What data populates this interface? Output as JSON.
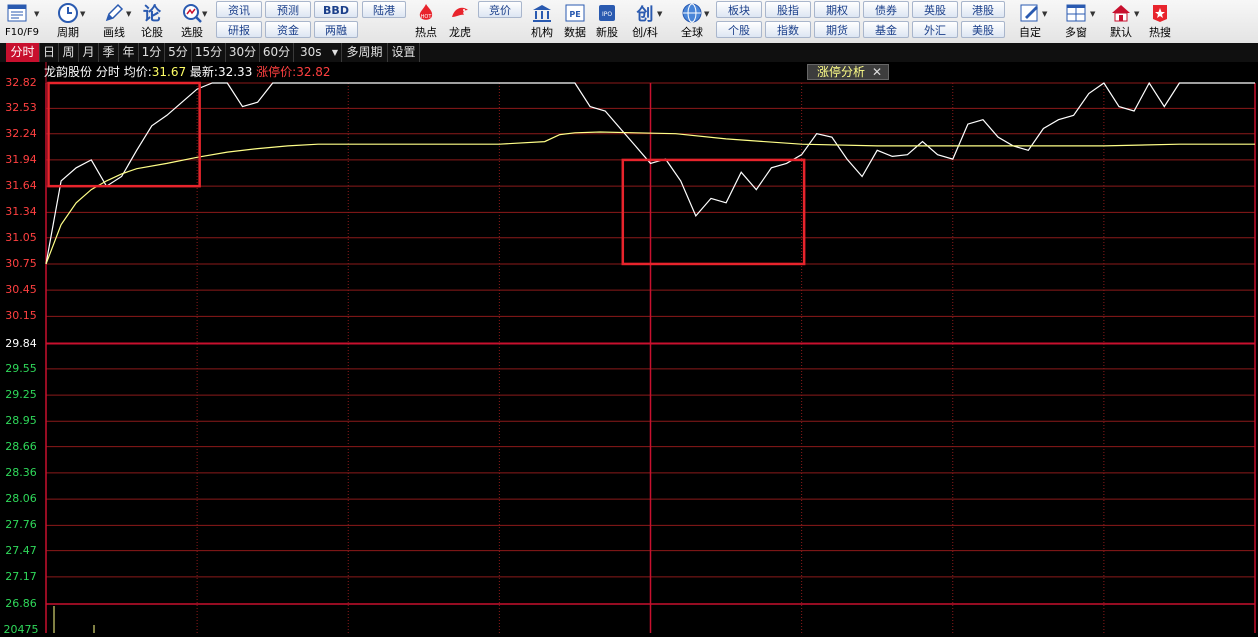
{
  "toolbar": {
    "f10_label": "F10/F9",
    "period_label": "周期",
    "draw_label": "画线",
    "comment_label": "论股",
    "pick_label": "选股",
    "news_label": "资讯",
    "forecast_label": "预测",
    "bbd_label": "BBD",
    "hk_connect_label": "陆港",
    "research_label": "研报",
    "fund_label": "资金",
    "margin_label": "两融",
    "hot_label": "热点",
    "hot_icon_text": "HOT",
    "dragon_label": "龙虎",
    "auction_label": "竞价",
    "institution_label": "机构",
    "data_label": "数据",
    "data_icon_text": "PE",
    "newstock_label": "新股",
    "newstock_icon_text": "IPO",
    "chuangke_label": "创/科",
    "chuangke_icon_text": "创",
    "global_label": "全球",
    "sector_label": "板块",
    "stock_label": "个股",
    "index_opt_label": "股指",
    "index_label": "指数",
    "options_label": "期权",
    "futures_label": "期货",
    "bond_label": "债券",
    "fundmkt_label": "基金",
    "uk_label": "英股",
    "forex_label": "外汇",
    "hk_label": "港股",
    "us_label": "美股",
    "custom_label": "自定",
    "multiwin_label": "多窗",
    "default_label": "默认",
    "hotsearch_label": "热搜"
  },
  "periods": [
    "分时",
    "日",
    "周",
    "月",
    "季",
    "年",
    "1分",
    "5分",
    "15分",
    "30分",
    "60分",
    "30s",
    "多周期",
    "设置"
  ],
  "info": {
    "name": "龙韵股份",
    "mode": "分时",
    "avg_label": "均价:",
    "avg_value": "31.67",
    "latest_label": "最新:",
    "latest_value": "32.33",
    "limit_label": "涨停价:",
    "limit_value": "32.82"
  },
  "analysis_tab": {
    "label": "涨停分析",
    "close": "✕"
  },
  "colors": {
    "up": "#ff4040",
    "down": "#2fd85a",
    "grid": "#8b1a1a",
    "price_line": "#ffffff",
    "avg_line": "#ffff88",
    "highlight_box": "#e8242c"
  },
  "chart_data": {
    "type": "line",
    "x_unit": "minute index from open (0-240)",
    "prev_close": 29.84,
    "ylim": [
      26.86,
      32.82
    ],
    "y_ticks": [
      "32.82",
      "32.53",
      "32.24",
      "31.94",
      "31.64",
      "31.34",
      "31.05",
      "30.75",
      "30.45",
      "30.15",
      "29.84",
      "29.55",
      "29.25",
      "28.95",
      "28.66",
      "28.36",
      "28.06",
      "27.76",
      "27.47",
      "27.17",
      "26.86"
    ],
    "volume_label": "20475",
    "series": [
      {
        "role": "price",
        "x": [
          0,
          3,
          6,
          9,
          12,
          15,
          18,
          21,
          24,
          27,
          30,
          33,
          36,
          39,
          42,
          45,
          48,
          51,
          54,
          57,
          60,
          63,
          66,
          69,
          72,
          75,
          78,
          81,
          84,
          87,
          90,
          93,
          96,
          99,
          102,
          105,
          108,
          111,
          114,
          117,
          120,
          123,
          126,
          129,
          132,
          135,
          138,
          141,
          144,
          147,
          150,
          153,
          156,
          159,
          162,
          165,
          168,
          171,
          174,
          177,
          180,
          183,
          186,
          189,
          192,
          195,
          198,
          201,
          204,
          207,
          210,
          213,
          216,
          219,
          222,
          225,
          228,
          231,
          234,
          237,
          240
        ],
        "y": [
          30.75,
          31.7,
          31.85,
          31.94,
          31.64,
          31.75,
          32.05,
          32.33,
          32.45,
          32.6,
          32.75,
          32.82,
          32.82,
          32.55,
          32.6,
          32.82,
          32.82,
          32.82,
          32.82,
          32.82,
          32.82,
          32.82,
          32.82,
          32.82,
          32.82,
          32.82,
          32.82,
          32.82,
          32.82,
          32.82,
          32.82,
          32.82,
          32.82,
          32.82,
          32.82,
          32.82,
          32.55,
          32.5,
          32.3,
          32.1,
          31.9,
          31.95,
          31.7,
          31.3,
          31.5,
          31.45,
          31.8,
          31.6,
          31.85,
          31.9,
          32.0,
          32.24,
          32.2,
          31.95,
          31.75,
          32.05,
          31.98,
          32.0,
          32.15,
          32.0,
          31.95,
          32.35,
          32.4,
          32.2,
          32.1,
          32.05,
          32.3,
          32.4,
          32.45,
          32.7,
          32.82,
          32.55,
          32.5,
          32.82,
          32.55,
          32.82,
          32.82,
          32.82,
          32.82,
          32.82,
          32.82
        ]
      },
      {
        "role": "average",
        "x": [
          0,
          3,
          6,
          9,
          12,
          15,
          18,
          24,
          30,
          36,
          42,
          48,
          54,
          60,
          75,
          90,
          99,
          102,
          105,
          110,
          117,
          125,
          135,
          150,
          165,
          180,
          195,
          210,
          225,
          240
        ],
        "y": [
          30.75,
          31.2,
          31.45,
          31.6,
          31.7,
          31.78,
          31.84,
          31.9,
          31.97,
          32.03,
          32.07,
          32.1,
          32.12,
          32.12,
          32.12,
          32.12,
          32.15,
          32.23,
          32.25,
          32.26,
          32.25,
          32.24,
          32.18,
          32.12,
          32.1,
          32.1,
          32.1,
          32.1,
          32.12,
          32.12
        ]
      }
    ],
    "highlight_boxes": [
      {
        "x0": 0.5,
        "x1": 30.5,
        "y_top": 32.82,
        "y_bottom": 31.64
      },
      {
        "x0": 114.5,
        "x1": 150.5,
        "y_top": 31.94,
        "y_bottom": 30.75
      }
    ]
  }
}
